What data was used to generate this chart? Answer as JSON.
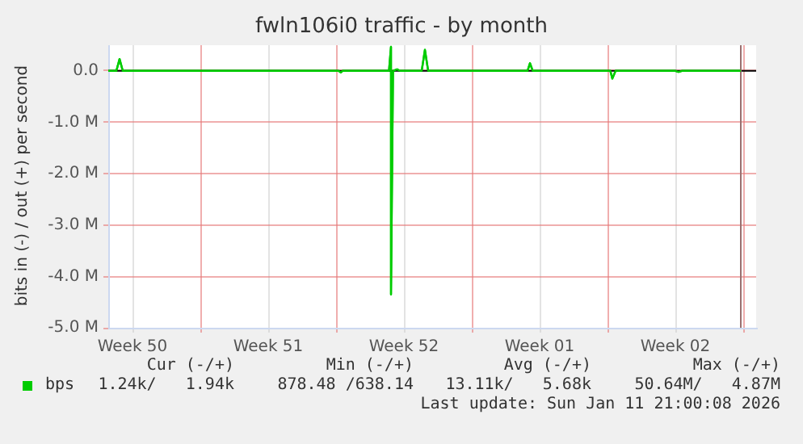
{
  "chart_data": {
    "type": "line",
    "title": "fwln106i0 traffic - by month",
    "ylabel": "bits in (-) / out (+) per second",
    "xlim": [
      "2025-12-10T06:00",
      "2026-01-12T16:00"
    ],
    "xticks": [
      {
        "value": "2025-12-11T12:00",
        "label": "Week 50"
      },
      {
        "value": "2025-12-15",
        "label": null
      },
      {
        "value": "2025-12-18T12:00",
        "label": "Week 51"
      },
      {
        "value": "2025-12-22",
        "label": null
      },
      {
        "value": "2025-12-25T12:00",
        "label": "Week 52"
      },
      {
        "value": "2025-12-29",
        "label": null
      },
      {
        "value": "2026-01-01T12:00",
        "label": "Week 01"
      },
      {
        "value": "2026-01-05",
        "label": null
      },
      {
        "value": "2026-01-08T12:00",
        "label": "Week 02"
      },
      {
        "value": "2026-01-12",
        "label": null
      }
    ],
    "ylim": [
      -5,
      0.5
    ],
    "yticks": [
      {
        "value": -5,
        "label": "-5.0 M"
      },
      {
        "value": -4,
        "label": "-4.0 M"
      },
      {
        "value": -3,
        "label": "-3.0 M"
      },
      {
        "value": -2,
        "label": "-2.0 M"
      },
      {
        "value": -1,
        "label": "-1.0 M"
      },
      {
        "value": 0,
        "label": "0.0"
      }
    ],
    "grid": true,
    "legend": "bottom left",
    "marker": "none",
    "line_style": "solid",
    "ref_lines": [
      {
        "axis": "y",
        "value": 0,
        "color": "#000000"
      },
      {
        "axis": "x",
        "value": "2026-01-11T21:00",
        "color": "#9a7070"
      }
    ],
    "series": [
      {
        "name": "bps",
        "color": "#00cc00",
        "x": [
          "2025-12-10T06:00",
          "2025-12-10T16:00",
          "2025-12-10T20:00",
          "2025-12-11T00:00",
          "2025-12-22T03:00",
          "2025-12-22T06:00",
          "2025-12-22T08:00",
          "2025-12-24T17:30",
          "2025-12-24T20:00",
          "2025-12-24T20:00",
          "2025-12-24T22:30",
          "2025-12-25T03:30",
          "2025-12-25T07:00",
          "2025-12-26T10:00",
          "2025-12-26T14:00",
          "2025-12-26T18:00",
          "2025-12-31T21:00",
          "2026-01-01T00:00",
          "2026-01-01T03:30",
          "2026-01-05T03:30",
          "2026-01-05T06:00",
          "2026-01-05T10:00",
          "2026-01-08T12:00",
          "2026-01-08T16:00",
          "2026-01-08T20:00",
          "2026-01-11T21:00"
        ],
        "values": [
          0,
          0,
          0.23,
          0,
          0,
          -0.03,
          0,
          0,
          0.47,
          -4.35,
          0,
          0.03,
          0,
          0,
          0.41,
          0,
          0,
          0.15,
          0,
          0,
          -0.15,
          0,
          0,
          -0.02,
          0,
          0
        ]
      }
    ],
    "annotations": [
      "Cur (-/+)",
      "Min (-/+)",
      "Avg (-/+)",
      "Max (-/+)",
      "1.24k/   1.94k",
      "878.48 /638.14",
      "13.11k/   5.68k",
      "50.64M/   4.87M",
      "Last update: Sun Jan 11 21:00:08 2026"
    ]
  }
}
